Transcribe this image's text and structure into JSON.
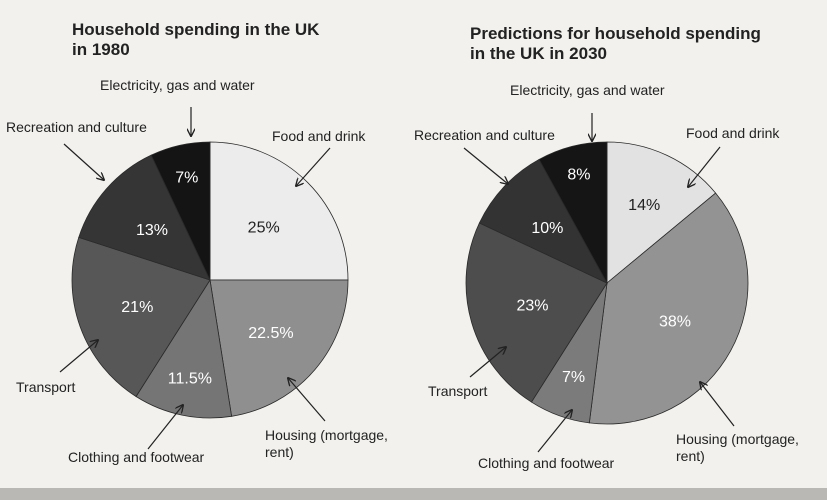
{
  "chart_data": [
    {
      "type": "pie",
      "title": "Household spending in the UK in 1980",
      "title_lines": [
        "Household spending in the UK",
        "in 1980"
      ],
      "slices": [
        {
          "label": "Food and drink",
          "label_lines": [
            "Food and drink"
          ],
          "value": 25,
          "value_label": "25%",
          "color": "#ececec",
          "text_color": "#222222"
        },
        {
          "label": "Housing (mortgage, rent)",
          "label_lines": [
            "Housing (mortgage,",
            "rent)"
          ],
          "value": 22.5,
          "value_label": "22.5%",
          "color": "#8f8f8f",
          "text_color": "#ffffff"
        },
        {
          "label": "Clothing and footwear",
          "label_lines": [
            "Clothing and footwear"
          ],
          "value": 11.5,
          "value_label": "11.5%",
          "color": "#757575",
          "text_color": "#ffffff"
        },
        {
          "label": "Transport",
          "label_lines": [
            "Transport"
          ],
          "value": 21,
          "value_label": "21%",
          "color": "#575757",
          "text_color": "#ffffff"
        },
        {
          "label": "Recreation and culture",
          "label_lines": [
            "Recreation and culture"
          ],
          "value": 13,
          "value_label": "13%",
          "color": "#353535",
          "text_color": "#ffffff"
        },
        {
          "label": "Electricity, gas and water",
          "label_lines": [
            "Electricity, gas and water"
          ],
          "value": 7,
          "value_label": "7%",
          "color": "#141414",
          "text_color": "#ffffff"
        }
      ]
    },
    {
      "type": "pie",
      "title": "Predictions for household spending in the UK in 2030",
      "title_lines": [
        "Predictions for household spending",
        "in the UK in 2030"
      ],
      "slices": [
        {
          "label": "Food and drink",
          "label_lines": [
            "Food and drink"
          ],
          "value": 14,
          "value_label": "14%",
          "color": "#e2e2e2",
          "text_color": "#222222"
        },
        {
          "label": "Housing (mortgage, rent)",
          "label_lines": [
            "Housing (mortgage,",
            "rent)"
          ],
          "value": 38,
          "value_label": "38%",
          "color": "#939393",
          "text_color": "#ffffff"
        },
        {
          "label": "Clothing and footwear",
          "label_lines": [
            "Clothing and footwear"
          ],
          "value": 7,
          "value_label": "7%",
          "color": "#7b7b7b",
          "text_color": "#ffffff"
        },
        {
          "label": "Transport",
          "label_lines": [
            "Transport"
          ],
          "value": 23,
          "value_label": "23%",
          "color": "#4d4d4d",
          "text_color": "#ffffff"
        },
        {
          "label": "Recreation and culture",
          "label_lines": [
            "Recreation and culture"
          ],
          "value": 10,
          "value_label": "10%",
          "color": "#333333",
          "text_color": "#ffffff"
        },
        {
          "label": "Electricity, gas and water",
          "label_lines": [
            "Electricity, gas and water"
          ],
          "value": 8,
          "value_label": "8%",
          "color": "#151515",
          "text_color": "#ffffff"
        }
      ]
    }
  ]
}
